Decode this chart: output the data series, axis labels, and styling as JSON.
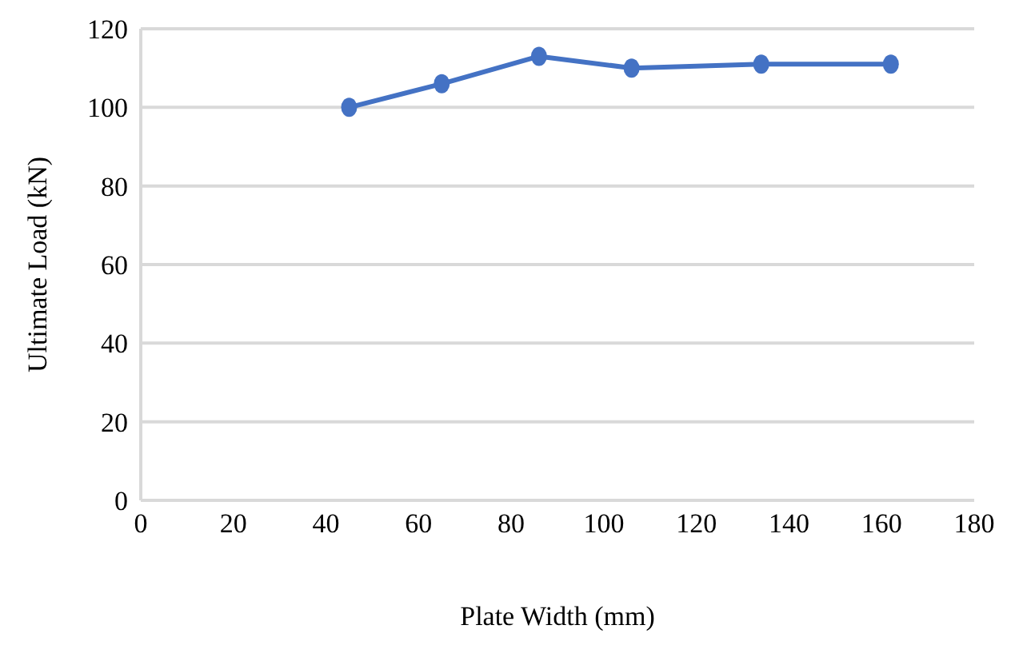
{
  "chart_data": {
    "type": "line",
    "xlabel": "Plate Width (mm)",
    "ylabel": "Ultimate Load (kN)",
    "x": [
      45,
      65,
      86,
      106,
      134,
      162
    ],
    "series": [
      {
        "color": "#4472c4",
        "values": [
          100,
          106,
          113,
          110,
          111,
          111
        ]
      }
    ],
    "xlim": [
      0,
      180
    ],
    "xticks": [
      0,
      20,
      40,
      60,
      80,
      100,
      120,
      140,
      160,
      180
    ],
    "ylim": [
      0,
      120
    ],
    "yticks": [
      0,
      20,
      40,
      60,
      80,
      100,
      120
    ],
    "grid": "y",
    "marker": "circle",
    "line_style": "solid",
    "legend": false
  }
}
